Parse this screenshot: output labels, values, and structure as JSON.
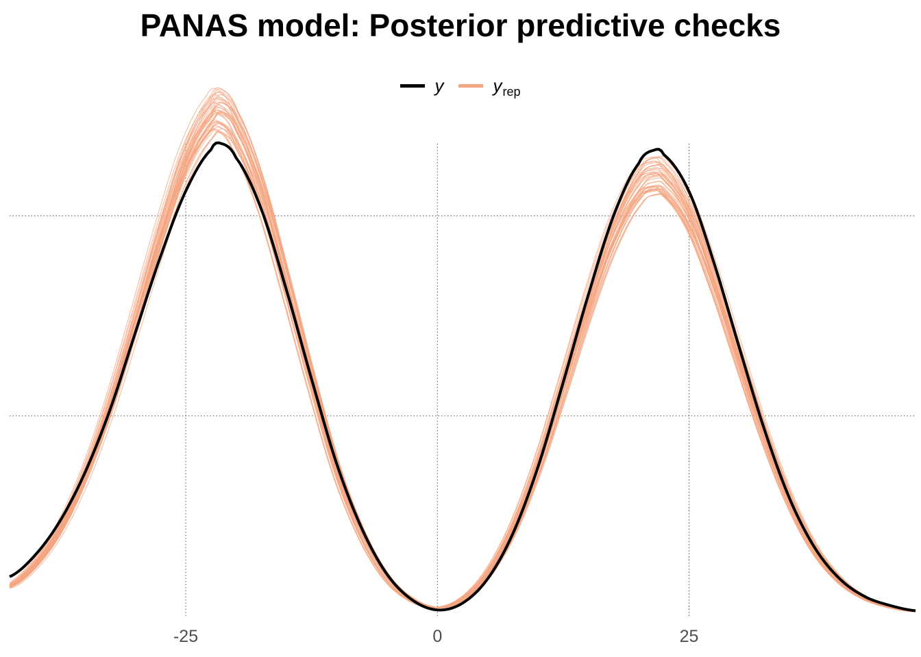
{
  "chart_data": {
    "type": "line",
    "title": "PANAS model: Posterior predictive checks",
    "xlabel": "",
    "ylabel": "",
    "xlim": [
      -42.5,
      47.5
    ],
    "x_ticks": [
      -25,
      0,
      25
    ],
    "x_tick_labels": [
      "-25",
      "0",
      "25"
    ],
    "grid": true,
    "legend_position": "top",
    "colors": {
      "y": "#000000",
      "yrep": "#f4a582"
    },
    "series": [
      {
        "name": "y",
        "x": [
          -42.5,
          -40,
          -37.5,
          -35,
          -32.5,
          -30,
          -27.5,
          -25,
          -22.5,
          -21.5,
          -20,
          -17.5,
          -15,
          -12.5,
          -10,
          -7.5,
          -5,
          -2.5,
          0,
          2.5,
          5,
          7.5,
          10,
          12.5,
          15,
          17.5,
          20,
          21.5,
          22.5,
          25,
          27.5,
          30,
          32.5,
          35,
          37.5,
          40,
          42.5,
          45,
          47.5
        ],
        "values": [
          0.0098,
          0.0151,
          0.0237,
          0.0359,
          0.0517,
          0.0709,
          0.0899,
          0.1062,
          0.1165,
          0.1181,
          0.1145,
          0.1017,
          0.0815,
          0.0592,
          0.038,
          0.0218,
          0.0104,
          0.004,
          0.0015,
          0.0032,
          0.0093,
          0.0206,
          0.0373,
          0.0584,
          0.0803,
          0.1,
          0.1131,
          0.1164,
          0.1153,
          0.1061,
          0.0881,
          0.067,
          0.0465,
          0.0293,
          0.017,
          0.0092,
          0.0048,
          0.0026,
          0.0013
        ]
      },
      {
        "name": "y_rep",
        "draws": 40,
        "x": [
          -42.5,
          -40,
          -37.5,
          -35,
          -32.5,
          -30,
          -27.5,
          -25,
          -22.5,
          -21.5,
          -20,
          -17.5,
          -15,
          -12.5,
          -10,
          -7.5,
          -5,
          -2.5,
          0,
          2.5,
          5,
          7.5,
          10,
          12.5,
          15,
          17.5,
          20,
          21.5,
          22.5,
          25,
          27.5,
          30,
          32.5,
          35,
          37.5,
          40,
          42.5,
          45,
          47.5
        ],
        "values": [
          0.0075,
          0.0128,
          0.0218,
          0.0353,
          0.053,
          0.074,
          0.0953,
          0.1139,
          0.1248,
          0.1262,
          0.1213,
          0.1058,
          0.083,
          0.059,
          0.0367,
          0.0205,
          0.0096,
          0.004,
          0.0021,
          0.0041,
          0.0105,
          0.0217,
          0.0378,
          0.0575,
          0.0779,
          0.0957,
          0.1074,
          0.1099,
          0.1088,
          0.1,
          0.0835,
          0.064,
          0.045,
          0.0287,
          0.0165,
          0.0088,
          0.0044,
          0.0022,
          0.0011
        ]
      }
    ]
  }
}
